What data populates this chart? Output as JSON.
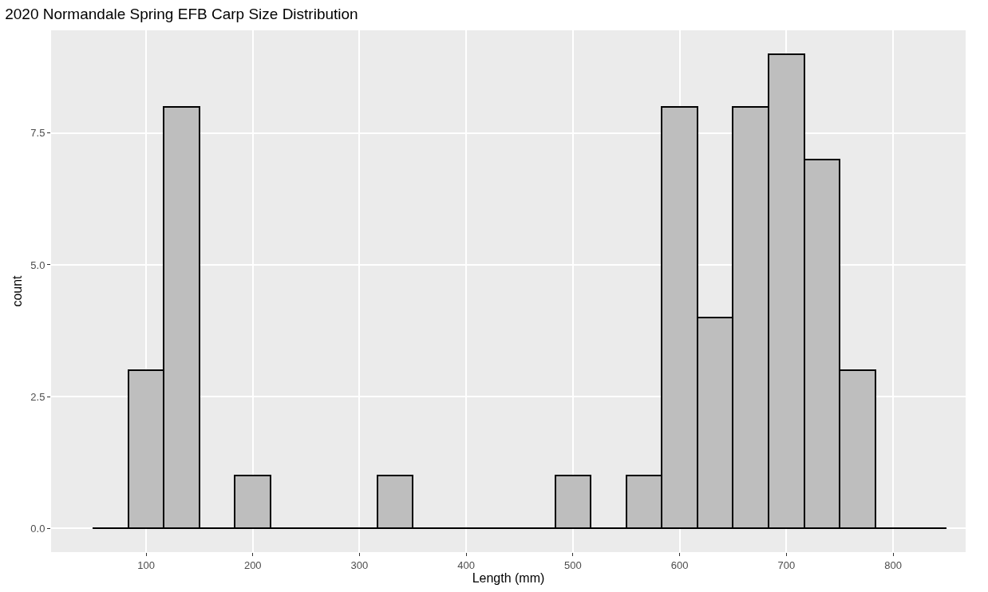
{
  "chart_data": {
    "type": "histogram",
    "title": "2020 Normandale Spring EFB Carp Size Distribution",
    "xlabel": "Length (mm)",
    "ylabel": "count",
    "bins": [
      50,
      83.33,
      116.67,
      150,
      183.33,
      216.67,
      250,
      283.33,
      316.67,
      350,
      383.33,
      416.67,
      450,
      483.33,
      516.67,
      550,
      583.33,
      616.67,
      650,
      683.33,
      716.67,
      750,
      783.33,
      816.67,
      850
    ],
    "values": [
      0,
      3,
      8,
      0,
      1,
      0,
      0,
      0,
      1,
      0,
      0,
      0,
      0,
      1,
      0,
      1,
      8,
      4,
      8,
      9,
      7,
      3,
      0,
      0
    ],
    "colors": [
      "#000000",
      "#bebebe",
      "#bebebe",
      "#000000",
      "#bebebe",
      "#000000",
      "#000000",
      "#000000",
      "#bebebe",
      "#000000",
      "#000000",
      "#000000",
      "#000000",
      "#bebebe",
      "#000000",
      "#bebebe",
      "#bebebe",
      "#bebebe",
      "#bebebe",
      "#bebebe",
      "#bebebe",
      "#bebebe",
      "#000000",
      "#000000"
    ],
    "xlim": [
      11,
      868
    ],
    "xticks": [
      100,
      200,
      300,
      400,
      500,
      600,
      700,
      800
    ],
    "ylim": [
      -0.45,
      9.45
    ],
    "yticks": [
      {
        "value": 0,
        "label": "0.0"
      },
      {
        "value": 2.5,
        "label": "2.5"
      },
      {
        "value": 5,
        "label": "5.0"
      },
      {
        "value": 7.5,
        "label": "7.5"
      }
    ],
    "grid": true
  }
}
